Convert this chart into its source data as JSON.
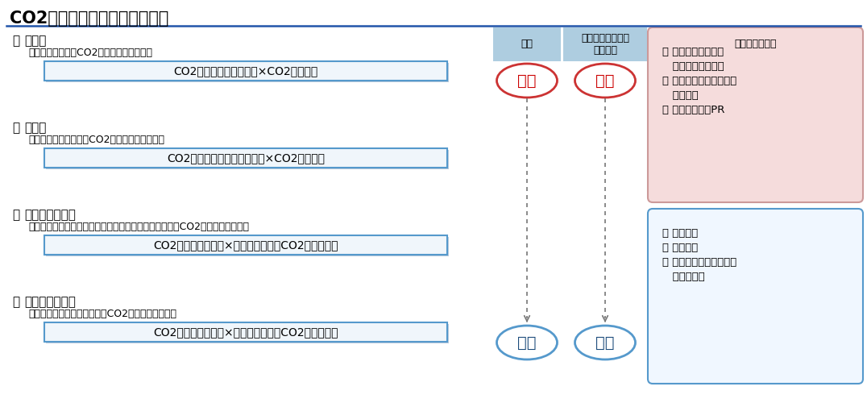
{
  "title": "CO2算出方法の概要と位置づけ",
  "title_fontsize": 15,
  "background_color": "#ffffff",
  "methods": [
    {
      "name": "燃料法",
      "desc": "：燃料使用量からCO2を排出量を算出する",
      "formula": "CO2排出量＝燃料使用量×CO2排出係数"
    },
    {
      "name": "燃費法",
      "desc": "：輸送距離と燃費からCO2を排出量を算出する",
      "formula": "CO2排出量＝輸送距離／燃費×CO2排出係数"
    },
    {
      "name": "改良トンキロ法",
      "desc": "：積載率と車両の燃費種類、最大積載量別の輸送量からCO2排出量を算出する",
      "formula": "CO2排出量＝輸送量×改良トンキロ法CO2排出原単位"
    },
    {
      "name": "従来トンキロ法",
      "desc": "：車種別モード別輸送量からCO2排出量を算出する",
      "formula": "CO2排出量＝輸送量×従来トンキロ法CO2排出原単位"
    }
  ],
  "col_headers": [
    "精度",
    "運送事業者の協力\nの必要性",
    "利用目的（例）"
  ],
  "col_header_bg": "#aecde0",
  "high_label": "高い",
  "low_label": "低い",
  "high_color": "#cc0000",
  "high_ellipse_edge": "#cc3333",
  "low_color": "#1a4a7a",
  "low_ellipse_edge": "#5599cc",
  "arrow_color": "#777777",
  "right_box1_bg": "#f5dcdc",
  "right_box1_edge": "#cc9999",
  "right_box1_lines": [
    "・ 削減対象の詳細評",
    "   価及びの経年評価",
    "・ ステークホルダーへの",
    "   情報開示",
    "・ 削減貢献量のPR"
  ],
  "right_box2_bg": "#f0f7ff",
  "right_box2_edge": "#5599cc",
  "right_box2_lines": [
    "・ 簡易推計",
    "・ 取組実績",
    "・ モーダルシフト検討時",
    "   の比較評価"
  ],
  "formula_box_edge": "#5599cc",
  "formula_box_bg": "#f0f6fb",
  "formula_box_shadow": "#bbccdd",
  "title_line_color": "#2255aa"
}
